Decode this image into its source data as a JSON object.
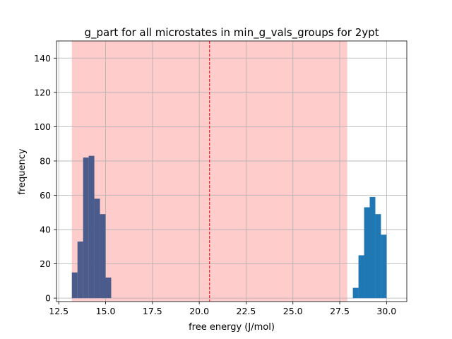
{
  "chart_data": {
    "type": "bar",
    "title": "g_part for all microstates in min_g_vals_groups for 2ypt",
    "xlabel": "free energy (J/mol)",
    "ylabel": "frequency",
    "xlim": [
      12.38,
      31.08
    ],
    "ylim": [
      -2,
      150
    ],
    "grid": true,
    "x_ticks": [
      12.5,
      15.0,
      17.5,
      20.0,
      22.5,
      25.0,
      27.5,
      30.0
    ],
    "x_tick_labels": [
      "12.5",
      "15.0",
      "17.5",
      "20.0",
      "22.5",
      "25.0",
      "27.5",
      "30.0"
    ],
    "y_ticks": [
      0,
      20,
      40,
      60,
      80,
      100,
      120,
      140
    ],
    "y_tick_labels": [
      "0",
      "20",
      "40",
      "60",
      "80",
      "100",
      "120",
      "140"
    ],
    "shaded_span": {
      "x0": 13.2,
      "x1": 27.9,
      "color": "#ffcccc"
    },
    "vline": {
      "x": 20.55,
      "color": "#ff0000",
      "style": "dashed"
    },
    "series": [
      {
        "color": "#4b5c8c",
        "bins": [
          {
            "x0": 13.2,
            "x1": 13.5,
            "value": 15
          },
          {
            "x0": 13.5,
            "x1": 13.8,
            "value": 33
          },
          {
            "x0": 13.8,
            "x1": 14.1,
            "value": 82
          },
          {
            "x0": 14.1,
            "x1": 14.4,
            "value": 83
          },
          {
            "x0": 14.4,
            "x1": 14.7,
            "value": 58
          },
          {
            "x0": 14.7,
            "x1": 15.0,
            "value": 49
          },
          {
            "x0": 15.0,
            "x1": 15.3,
            "value": 12
          }
        ]
      },
      {
        "color": "#1f77b4",
        "bins": [
          {
            "x0": 28.2,
            "x1": 28.5,
            "value": 6
          },
          {
            "x0": 28.5,
            "x1": 28.8,
            "value": 25
          },
          {
            "x0": 28.8,
            "x1": 29.1,
            "value": 53
          },
          {
            "x0": 29.1,
            "x1": 29.4,
            "value": 59
          },
          {
            "x0": 29.4,
            "x1": 29.7,
            "value": 49
          },
          {
            "x0": 29.7,
            "x1": 30.0,
            "value": 37
          }
        ]
      }
    ]
  }
}
